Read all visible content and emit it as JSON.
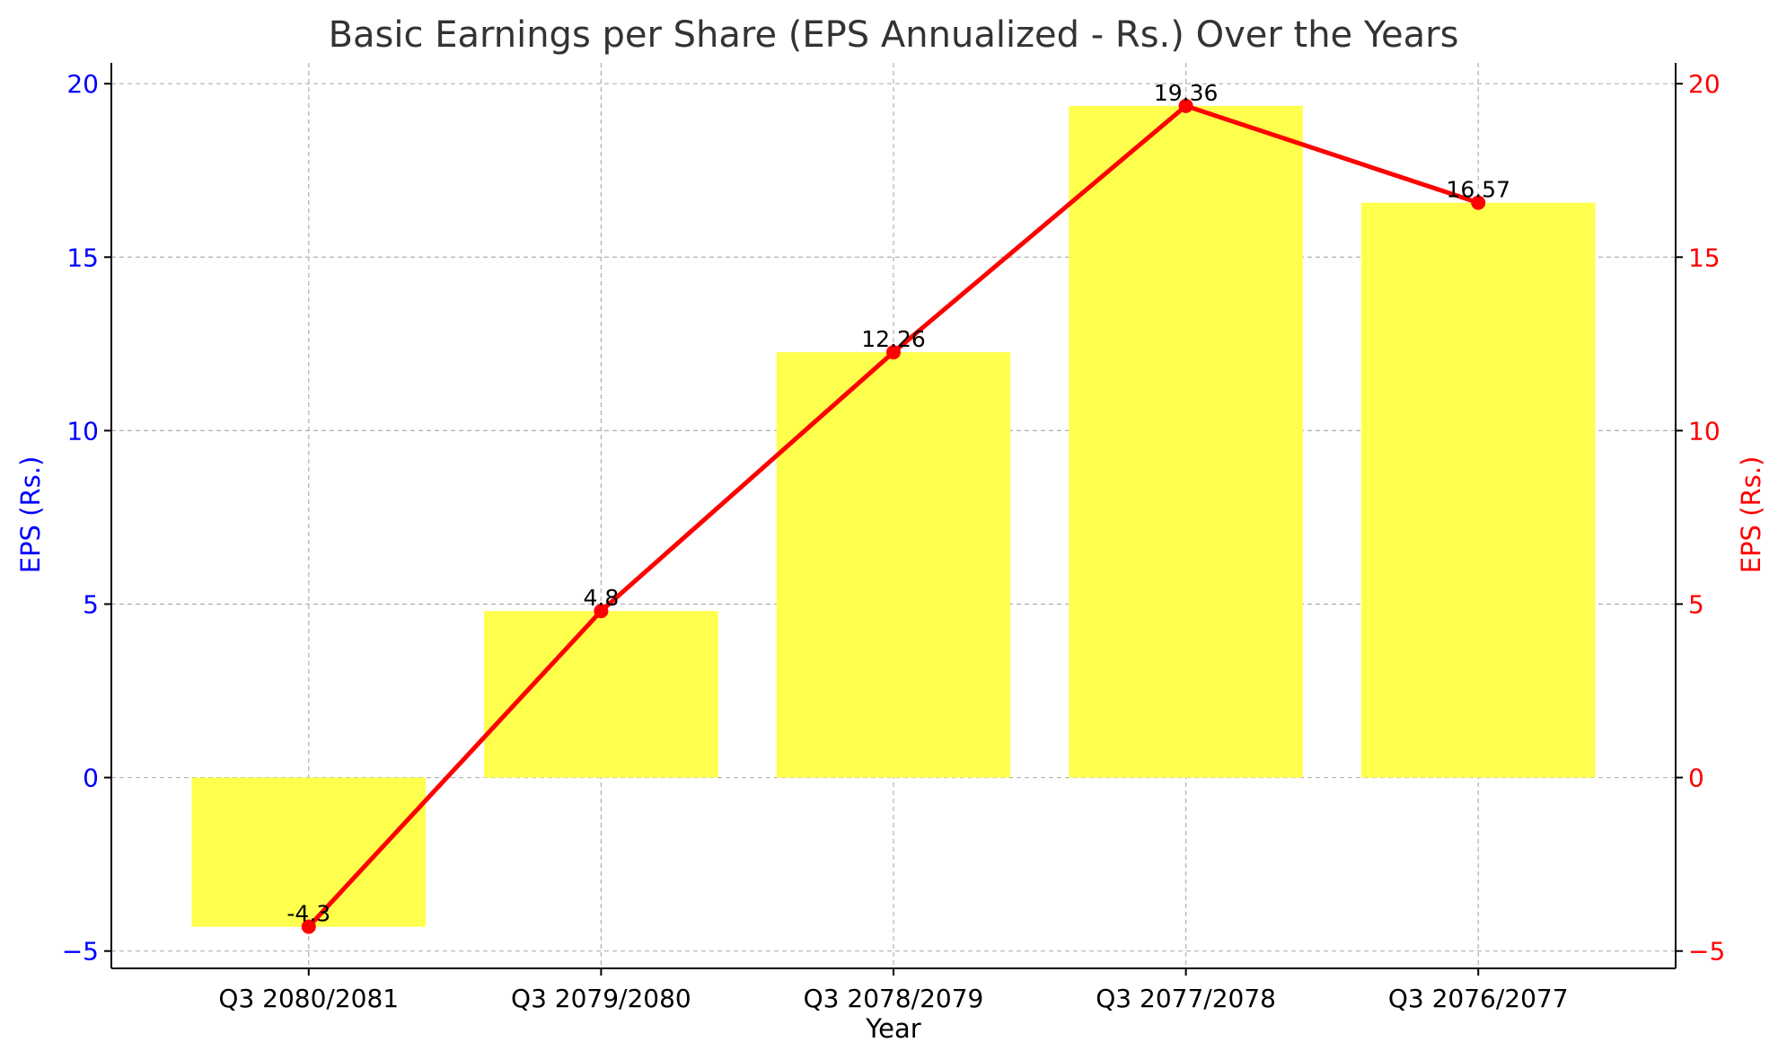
{
  "chart_data": {
    "type": "bar",
    "title": "Basic Earnings per Share (EPS Annualized - Rs.) Over the Years",
    "xlabel": "Year",
    "ylabel_left": "EPS (Rs.)",
    "ylabel_right": "EPS (Rs.)",
    "categories": [
      "Q3 2080/2081",
      "Q3 2079/2080",
      "Q3 2078/2079",
      "Q3 2077/2078",
      "Q3 2076/2077"
    ],
    "series": [
      {
        "type": "bar",
        "values": [
          -4.3,
          4.8,
          12.26,
          19.36,
          16.57
        ],
        "color": "#ffff4d",
        "axis": "left"
      },
      {
        "type": "line",
        "values": [
          -4.3,
          4.8,
          12.26,
          19.36,
          16.57
        ],
        "color": "#ff0000",
        "axis": "right",
        "marker": "circle"
      }
    ],
    "data_labels": [
      "-4.3",
      "4.8",
      "12.26",
      "19.36",
      "16.57"
    ],
    "ylim": [
      -5.5,
      20.6
    ],
    "yticks": [
      -5,
      0,
      5,
      10,
      15,
      20
    ],
    "ytick_labels": [
      "−5",
      "0",
      "5",
      "10",
      "15",
      "20"
    ],
    "left_axis_color": "#0000ff",
    "right_axis_color": "#ff0000",
    "grid": true
  }
}
